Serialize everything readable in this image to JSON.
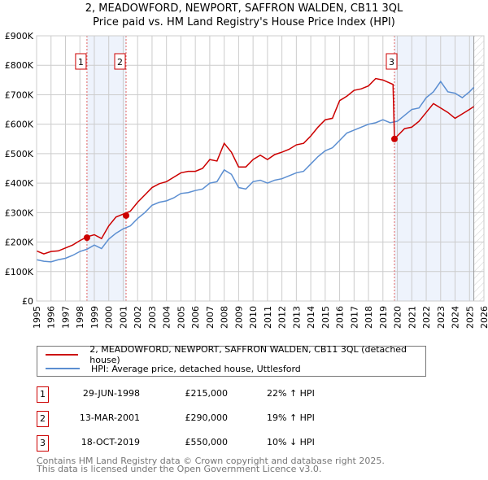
{
  "title_line1": "2, MEADOWFORD, NEWPORT, SAFFRON WALDEN, CB11 3QL",
  "title_line2": "Price paid vs. HM Land Registry's House Price Index (HPI)",
  "chart_data": {
    "type": "line",
    "xlim": [
      1995,
      2026
    ],
    "ylim": [
      0,
      900000
    ],
    "x_ticks": [
      "1995",
      "1996",
      "1997",
      "1998",
      "1999",
      "2000",
      "2001",
      "2002",
      "2003",
      "2004",
      "2005",
      "2006",
      "2007",
      "2008",
      "2009",
      "2010",
      "2011",
      "2012",
      "2013",
      "2014",
      "2015",
      "2016",
      "2017",
      "2018",
      "2019",
      "2020",
      "2021",
      "2022",
      "2023",
      "2024",
      "2025",
      "2026"
    ],
    "y_ticks": [
      {
        "v": 0,
        "label": "£0"
      },
      {
        "v": 100000,
        "label": "£100K"
      },
      {
        "v": 200000,
        "label": "£200K"
      },
      {
        "v": 300000,
        "label": "£300K"
      },
      {
        "v": 400000,
        "label": "£400K"
      },
      {
        "v": 500000,
        "label": "£500K"
      },
      {
        "v": 600000,
        "label": "£600K"
      },
      {
        "v": 700000,
        "label": "£700K"
      },
      {
        "v": 800000,
        "label": "£800K"
      },
      {
        "v": 900000,
        "label": "£900K"
      }
    ],
    "grid": true,
    "shaded_ranges": [
      [
        1998.49,
        2001.2
      ],
      [
        2019.8,
        2025.3
      ]
    ],
    "forecast_hatch_from": 2025.3,
    "series": [
      {
        "name": "2, MEADOWFORD, NEWPORT, SAFFRON WALDEN, CB11 3QL (detached house)",
        "color": "#cc0000",
        "x": [
          1995,
          1995.5,
          1996,
          1996.5,
          1997,
          1997.5,
          1998,
          1998.5,
          1999,
          1999.5,
          2000,
          2000.5,
          2001,
          2001.5,
          2002,
          2002.5,
          2003,
          2003.5,
          2004,
          2004.5,
          2005,
          2005.5,
          2006,
          2006.5,
          2007,
          2007.5,
          2008,
          2008.5,
          2009,
          2009.5,
          2010,
          2010.5,
          2011,
          2011.5,
          2012,
          2012.5,
          2013,
          2013.5,
          2014,
          2014.5,
          2015,
          2015.5,
          2016,
          2016.5,
          2017,
          2017.5,
          2018,
          2018.5,
          2019,
          2019.7,
          2019.8,
          2020,
          2020.5,
          2021,
          2021.5,
          2022,
          2022.5,
          2023,
          2023.5,
          2024,
          2024.5,
          2025,
          2025.3
        ],
        "y": [
          170000,
          160000,
          168000,
          170000,
          180000,
          190000,
          205000,
          218000,
          225000,
          212000,
          255000,
          285000,
          295000,
          305000,
          335000,
          360000,
          385000,
          398000,
          405000,
          420000,
          435000,
          440000,
          440000,
          450000,
          480000,
          475000,
          535000,
          505000,
          455000,
          455000,
          480000,
          495000,
          480000,
          497000,
          505000,
          515000,
          530000,
          535000,
          560000,
          590000,
          615000,
          620000,
          680000,
          695000,
          715000,
          720000,
          730000,
          755000,
          750000,
          735000,
          550000,
          560000,
          585000,
          590000,
          610000,
          640000,
          670000,
          655000,
          640000,
          620000,
          635000,
          650000,
          660000
        ]
      },
      {
        "name": "HPI: Average price, detached house, Uttlesford",
        "color": "#5b8ed1",
        "x": [
          1995,
          1995.5,
          1996,
          1996.5,
          1997,
          1997.5,
          1998,
          1998.5,
          1999,
          1999.5,
          2000,
          2000.5,
          2001,
          2001.5,
          2002,
          2002.5,
          2003,
          2003.5,
          2004,
          2004.5,
          2005,
          2005.5,
          2006,
          2006.5,
          2007,
          2007.5,
          2008,
          2008.5,
          2009,
          2009.5,
          2010,
          2010.5,
          2011,
          2011.5,
          2012,
          2012.5,
          2013,
          2013.5,
          2014,
          2014.5,
          2015,
          2015.5,
          2016,
          2016.5,
          2017,
          2017.5,
          2018,
          2018.5,
          2019,
          2019.5,
          2020,
          2020.5,
          2021,
          2021.5,
          2022,
          2022.5,
          2023,
          2023.5,
          2024,
          2024.5,
          2025,
          2025.3
        ],
        "y": [
          140000,
          135000,
          133000,
          140000,
          145000,
          155000,
          168000,
          176000,
          190000,
          178000,
          210000,
          230000,
          245000,
          255000,
          280000,
          300000,
          325000,
          335000,
          340000,
          350000,
          365000,
          368000,
          375000,
          380000,
          400000,
          405000,
          445000,
          430000,
          385000,
          380000,
          405000,
          410000,
          400000,
          410000,
          415000,
          425000,
          435000,
          440000,
          465000,
          490000,
          510000,
          520000,
          545000,
          570000,
          580000,
          590000,
          600000,
          605000,
          615000,
          605000,
          610000,
          630000,
          650000,
          655000,
          690000,
          710000,
          745000,
          710000,
          705000,
          690000,
          710000,
          725000
        ]
      }
    ],
    "sales": [
      {
        "label": "1",
        "x": 1998.49,
        "y": 215000
      },
      {
        "label": "2",
        "x": 2001.2,
        "y": 290000
      },
      {
        "label": "3",
        "x": 2019.8,
        "y": 550000
      }
    ]
  },
  "legend": {
    "property": "2, MEADOWFORD, NEWPORT, SAFFRON WALDEN, CB11 3QL (detached house)",
    "hpi": "HPI: Average price, detached house, Uttlesford"
  },
  "transactions": [
    {
      "num": "1",
      "date": "29-JUN-1998",
      "price": "£215,000",
      "hpi": "22% ↑ HPI"
    },
    {
      "num": "2",
      "date": "13-MAR-2001",
      "price": "£290,000",
      "hpi": "19% ↑ HPI"
    },
    {
      "num": "3",
      "date": "18-OCT-2019",
      "price": "£550,000",
      "hpi": "10% ↓ HPI"
    }
  ],
  "footer": {
    "line1": "Contains HM Land Registry data © Crown copyright and database right 2025.",
    "line2": "This data is licensed under the Open Government Licence v3.0."
  }
}
